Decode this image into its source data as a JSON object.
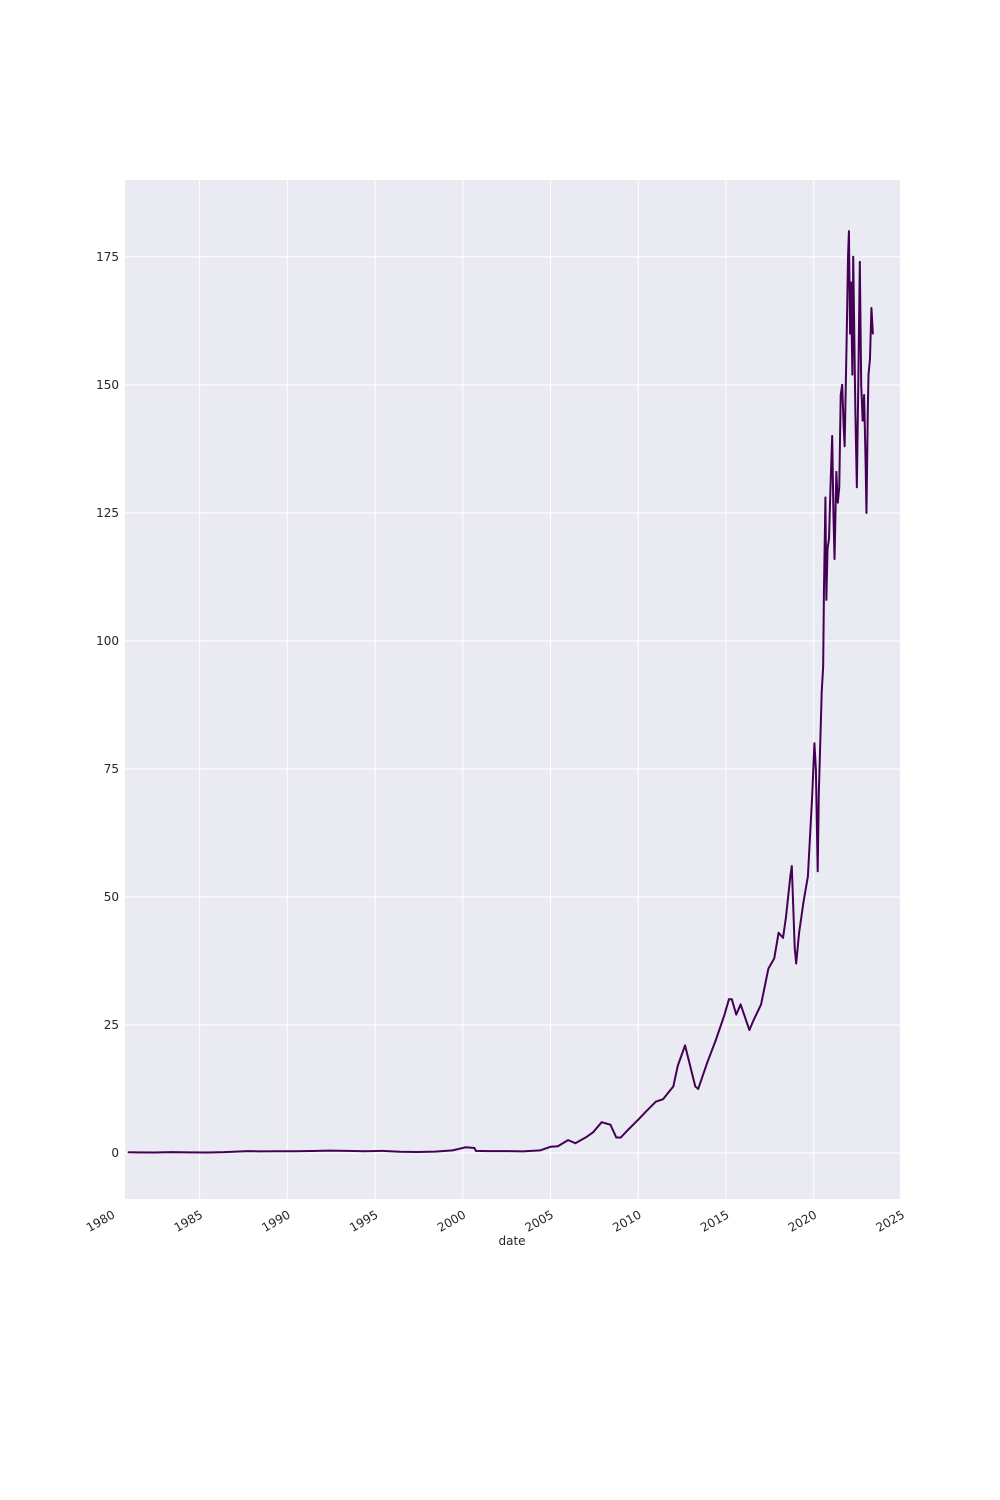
{
  "chart_data": {
    "type": "line",
    "title": "",
    "xlabel": "date",
    "ylabel": "",
    "style": "seaborn-darkgrid",
    "grid": true,
    "legend": "none",
    "colors": {
      "line": "#440154",
      "plot_background": "#eaeaf2",
      "grid": "#ffffff",
      "text": "#262626"
    },
    "xlim": [
      "1980-10-01",
      "2024-12-01"
    ],
    "ylim": [
      -9,
      190
    ],
    "x_ticks": [
      "1980",
      "1985",
      "1990",
      "1995",
      "2000",
      "2005",
      "2010",
      "2015",
      "2020",
      "2025"
    ],
    "y_ticks": [
      0,
      25,
      50,
      75,
      100,
      125,
      150,
      175
    ],
    "y_tick_labels": [
      "0",
      "25",
      "50",
      "75",
      "100",
      "125",
      "150",
      "175"
    ],
    "series": [
      {
        "x": [
          "1980-12-12",
          "1981-06-01",
          "1982-06-01",
          "1983-06-01",
          "1984-06-01",
          "1985-06-01",
          "1986-06-01",
          "1987-06-01",
          "1987-10-01",
          "1988-06-01",
          "1989-06-01",
          "1990-06-01",
          "1991-06-01",
          "1992-06-01",
          "1993-06-01",
          "1994-06-01",
          "1995-06-01",
          "1996-06-01",
          "1997-06-01",
          "1998-06-01",
          "1999-06-01",
          "1999-12-01",
          "2000-03-01",
          "2000-09-01",
          "2000-10-01",
          "2001-06-01",
          "2002-06-01",
          "2003-06-01",
          "2004-06-01",
          "2005-01-01",
          "2005-06-01",
          "2006-01-01",
          "2006-06-01",
          "2007-01-01",
          "2007-06-01",
          "2007-12-01",
          "2008-06-01",
          "2008-10-01",
          "2009-01-01",
          "2009-06-01",
          "2010-01-01",
          "2010-06-01",
          "2011-01-01",
          "2011-06-01",
          "2012-01-01",
          "2012-04-01",
          "2012-09-01",
          "2013-04-01",
          "2013-06-01",
          "2013-12-01",
          "2014-06-01",
          "2014-12-01",
          "2015-03-01",
          "2015-05-01",
          "2015-08-01",
          "2015-11-01",
          "2016-05-01",
          "2016-08-01",
          "2017-01-01",
          "2017-06-01",
          "2017-10-01",
          "2018-01-01",
          "2018-04-01",
          "2018-06-01",
          "2018-09-01",
          "2018-10-01",
          "2018-12-01",
          "2019-01-01",
          "2019-03-01",
          "2019-06-01",
          "2019-09-01",
          "2019-12-01",
          "2020-01-15",
          "2020-02-15",
          "2020-03-23",
          "2020-04-15",
          "2020-05-15",
          "2020-06-15",
          "2020-07-15",
          "2020-08-01",
          "2020-09-01",
          "2020-09-20",
          "2020-10-15",
          "2020-11-15",
          "2020-12-15",
          "2021-01-20",
          "2021-02-15",
          "2021-03-08",
          "2021-04-15",
          "2021-05-15",
          "2021-06-15",
          "2021-07-15",
          "2021-08-15",
          "2021-09-15",
          "2021-10-05",
          "2021-11-15",
          "2021-12-15",
          "2022-01-03",
          "2022-01-27",
          "2022-02-15",
          "2022-03-14",
          "2022-04-01",
          "2022-05-15",
          "2022-06-16",
          "2022-07-15",
          "2022-08-17",
          "2022-09-15",
          "2022-10-15",
          "2022-11-15",
          "2022-12-15",
          "2023-01-03",
          "2023-01-31",
          "2023-02-15",
          "2023-03-15",
          "2023-04-15",
          "2023-05-15"
        ],
        "values": [
          0.13,
          0.1,
          0.09,
          0.15,
          0.11,
          0.09,
          0.15,
          0.3,
          0.35,
          0.3,
          0.32,
          0.33,
          0.38,
          0.45,
          0.4,
          0.32,
          0.4,
          0.22,
          0.17,
          0.25,
          0.5,
          0.9,
          1.1,
          0.95,
          0.4,
          0.35,
          0.35,
          0.3,
          0.5,
          1.2,
          1.3,
          2.5,
          1.9,
          3.0,
          4.0,
          6.0,
          5.5,
          3.0,
          3.0,
          4.5,
          6.5,
          8.0,
          10.0,
          10.5,
          13.0,
          17.0,
          21.0,
          13.0,
          12.5,
          17.5,
          22.0,
          27.0,
          30.0,
          30.0,
          27.0,
          29.0,
          24.0,
          26.0,
          29.0,
          36.0,
          38.0,
          43.0,
          42.0,
          46.0,
          54.0,
          56.0,
          40.0,
          37.0,
          43.0,
          49.0,
          54.0,
          70.0,
          80.0,
          75.0,
          55.0,
          70.0,
          80.0,
          90.0,
          95.0,
          110.0,
          128.0,
          108.0,
          118.0,
          120.0,
          130.0,
          140.0,
          125.0,
          116.0,
          133.0,
          127.0,
          130.0,
          148.0,
          150.0,
          142.0,
          138.0,
          158.0,
          175.0,
          180.0,
          160.0,
          170.0,
          152.0,
          175.0,
          145.0,
          130.0,
          150.0,
          174.0,
          150.0,
          143.0,
          148.0,
          135.0,
          125.0,
          145.0,
          152.0,
          155.0,
          165.0,
          160.0
        ]
      }
    ]
  }
}
